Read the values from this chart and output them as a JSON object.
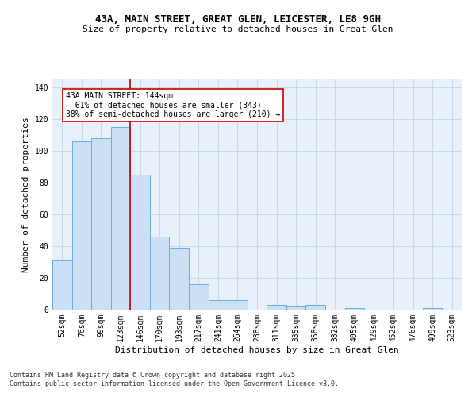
{
  "title1": "43A, MAIN STREET, GREAT GLEN, LEICESTER, LE8 9GH",
  "title2": "Size of property relative to detached houses in Great Glen",
  "xlabel": "Distribution of detached houses by size in Great Glen",
  "ylabel": "Number of detached properties",
  "categories": [
    "52sqm",
    "76sqm",
    "99sqm",
    "123sqm",
    "146sqm",
    "170sqm",
    "193sqm",
    "217sqm",
    "241sqm",
    "264sqm",
    "288sqm",
    "311sqm",
    "335sqm",
    "358sqm",
    "382sqm",
    "405sqm",
    "429sqm",
    "452sqm",
    "476sqm",
    "499sqm",
    "523sqm"
  ],
  "values": [
    31,
    106,
    108,
    115,
    85,
    46,
    39,
    16,
    6,
    6,
    0,
    3,
    2,
    3,
    0,
    1,
    0,
    0,
    0,
    1,
    0
  ],
  "bar_color": "#cce0f5",
  "bar_edge_color": "#6aaee0",
  "grid_color": "#c8d8ec",
  "bg_color": "#e8f0fa",
  "vline_color": "#cc0000",
  "vline_x_index": 3.5,
  "annotation_text": "43A MAIN STREET: 144sqm\n← 61% of detached houses are smaller (343)\n38% of semi-detached houses are larger (210) →",
  "annotation_box_color": "white",
  "annotation_box_edge": "#cc0000",
  "footer1": "Contains HM Land Registry data © Crown copyright and database right 2025.",
  "footer2": "Contains public sector information licensed under the Open Government Licence v3.0.",
  "ylim": [
    0,
    145
  ],
  "yticks": [
    0,
    20,
    40,
    60,
    80,
    100,
    120,
    140
  ],
  "title1_fontsize": 9,
  "title2_fontsize": 8,
  "tick_fontsize": 7,
  "ylabel_fontsize": 8,
  "xlabel_fontsize": 8,
  "annot_fontsize": 7,
  "footer_fontsize": 6
}
